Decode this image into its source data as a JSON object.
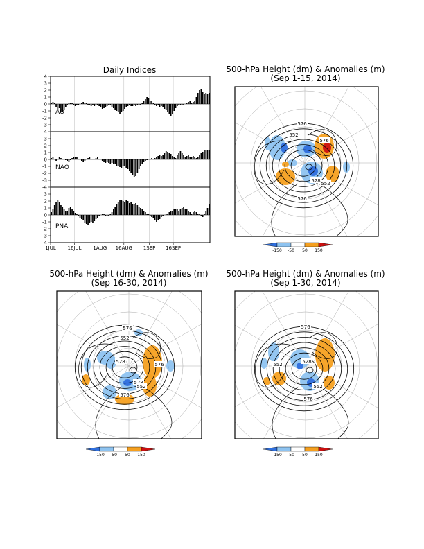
{
  "indices": {
    "title": "Daily Indices",
    "yticks": [
      4,
      3,
      2,
      1,
      0,
      -1,
      -2,
      -3,
      -4
    ],
    "xticks": [
      "1JUL",
      "16JUL",
      "1AUG",
      "16AUG",
      "1SEP",
      "16SEP"
    ]
  },
  "chart_data": [
    {
      "type": "bar",
      "title": "AO",
      "ylim": [
        -4,
        4
      ],
      "x_start": "1JUL",
      "values": [
        0.1,
        0.3,
        0.2,
        -0.5,
        -0.8,
        -0.6,
        -1.1,
        -1.2,
        -0.9,
        -0.5,
        -0.2,
        0.1,
        0.2,
        0.1,
        -0.1,
        -0.3,
        -0.2,
        -0.1,
        0.0,
        0.1,
        0.3,
        0.2,
        0.1,
        -0.1,
        -0.2,
        -0.3,
        -0.2,
        -0.3,
        -0.2,
        -0.1,
        -0.3,
        -0.5,
        -0.7,
        -0.6,
        -0.5,
        -0.3,
        -0.2,
        -0.1,
        -0.4,
        -0.6,
        -0.8,
        -1.0,
        -1.2,
        -1.4,
        -1.2,
        -1.0,
        -0.7,
        -0.4,
        -0.3,
        -0.2,
        -0.3,
        -0.3,
        -0.2,
        -0.3,
        -0.2,
        -0.2,
        -0.1,
        0.1,
        0.4,
        0.7,
        1.0,
        0.8,
        0.5,
        0.4,
        0.1,
        -0.1,
        -0.3,
        -0.2,
        -0.4,
        -0.3,
        -0.5,
        -0.7,
        -0.9,
        -1.2,
        -1.5,
        -1.7,
        -1.4,
        -1.0,
        -0.6,
        -0.3,
        -0.2,
        -0.1,
        -0.2,
        -0.1,
        0.0,
        0.2,
        0.3,
        0.4,
        0.1,
        0.3,
        0.5,
        1.0,
        1.6,
        2.0,
        2.2,
        1.8,
        1.5,
        1.6,
        1.4,
        1.6
      ]
    },
    {
      "type": "bar",
      "title": "NAO",
      "ylim": [
        -4,
        4
      ],
      "x_start": "1JUL",
      "values": [
        0.2,
        0.3,
        0.1,
        -0.2,
        0.1,
        0.3,
        0.2,
        0.1,
        0.0,
        -0.1,
        -0.2,
        -0.3,
        -0.1,
        0.2,
        0.3,
        0.4,
        0.3,
        0.1,
        0.0,
        -0.2,
        -0.3,
        -0.2,
        0.1,
        0.2,
        0.3,
        0.1,
        0.0,
        0.1,
        0.2,
        0.3,
        0.1,
        0.0,
        -0.2,
        -0.3,
        -0.5,
        -0.4,
        -0.5,
        -0.6,
        -0.5,
        -0.6,
        -0.7,
        -0.9,
        -1.0,
        -1.1,
        -1.2,
        -1.0,
        -0.9,
        -1.2,
        -1.4,
        -1.6,
        -2.0,
        -2.3,
        -2.6,
        -2.4,
        -2.0,
        -1.4,
        -1.0,
        -0.6,
        -0.4,
        -0.2,
        -0.1,
        0.0,
        0.1,
        0.2,
        0.1,
        0.2,
        0.3,
        0.5,
        0.6,
        0.5,
        0.7,
        0.9,
        1.2,
        1.1,
        1.0,
        0.8,
        0.5,
        0.3,
        0.2,
        0.6,
        1.0,
        1.2,
        1.0,
        0.6,
        0.3,
        0.5,
        0.6,
        0.4,
        0.3,
        0.5,
        0.4,
        0.2,
        0.4,
        0.7,
        0.9,
        1.1,
        1.3,
        1.4,
        1.3,
        1.4
      ]
    },
    {
      "type": "bar",
      "title": "PNA",
      "ylim": [
        -4,
        4
      ],
      "x_start": "1JUL",
      "values": [
        0.4,
        0.8,
        1.4,
        1.9,
        2.1,
        1.8,
        1.4,
        1.1,
        0.8,
        0.5,
        0.6,
        1.0,
        1.2,
        0.9,
        0.6,
        0.3,
        0.1,
        -0.2,
        -0.4,
        -0.6,
        -0.8,
        -1.1,
        -1.3,
        -1.4,
        -1.2,
        -1.0,
        -1.1,
        -0.9,
        -0.6,
        -0.4,
        -0.2,
        0.0,
        0.2,
        0.1,
        -0.1,
        -0.2,
        -0.1,
        0.1,
        0.4,
        0.8,
        1.2,
        1.5,
        1.9,
        2.1,
        2.2,
        2.0,
        1.8,
        2.1,
        2.0,
        1.7,
        1.9,
        1.6,
        1.5,
        1.7,
        1.4,
        1.2,
        1.0,
        0.9,
        0.6,
        0.4,
        0.2,
        0.1,
        -0.1,
        -0.3,
        -0.5,
        -0.8,
        -1.0,
        -0.8,
        -0.6,
        -0.3,
        -0.1,
        0.0,
        0.1,
        0.2,
        0.4,
        0.5,
        0.6,
        0.8,
        0.9,
        0.8,
        0.6,
        0.8,
        1.0,
        1.1,
        0.9,
        0.8,
        0.6,
        0.4,
        0.2,
        0.4,
        0.6,
        0.4,
        0.2,
        0.1,
        -0.1,
        -0.3,
        0.2,
        0.6,
        1.0,
        1.5
      ]
    }
  ],
  "maps": [
    {
      "title_line1": "500-hPa Height (dm) & Anomalies (m)",
      "title_line2": "(Sep 1-15, 2014)",
      "contour_labels": [
        "576",
        "576",
        "552",
        "552",
        "528",
        "576"
      ]
    },
    {
      "title_line1": "500-hPa Height (dm) & Anomalies (m)",
      "title_line2": "(Sep 16-30, 2014)",
      "contour_labels": [
        "576",
        "552",
        "528",
        "528",
        "576",
        "552",
        "576"
      ]
    },
    {
      "title_line1": "500-hPa Height (dm) & Anomalies (m)",
      "title_line2": "(Sep 1-30, 2014)",
      "contour_labels": [
        "576",
        "552",
        "528",
        "552",
        "576"
      ]
    }
  ],
  "colorbar": {
    "labels": [
      "-150",
      "-50",
      "50",
      "150"
    ],
    "colors": [
      "#2f6fdd",
      "#8ec3f0",
      "#ffffff",
      "#f5a020",
      "#cc1010"
    ]
  }
}
